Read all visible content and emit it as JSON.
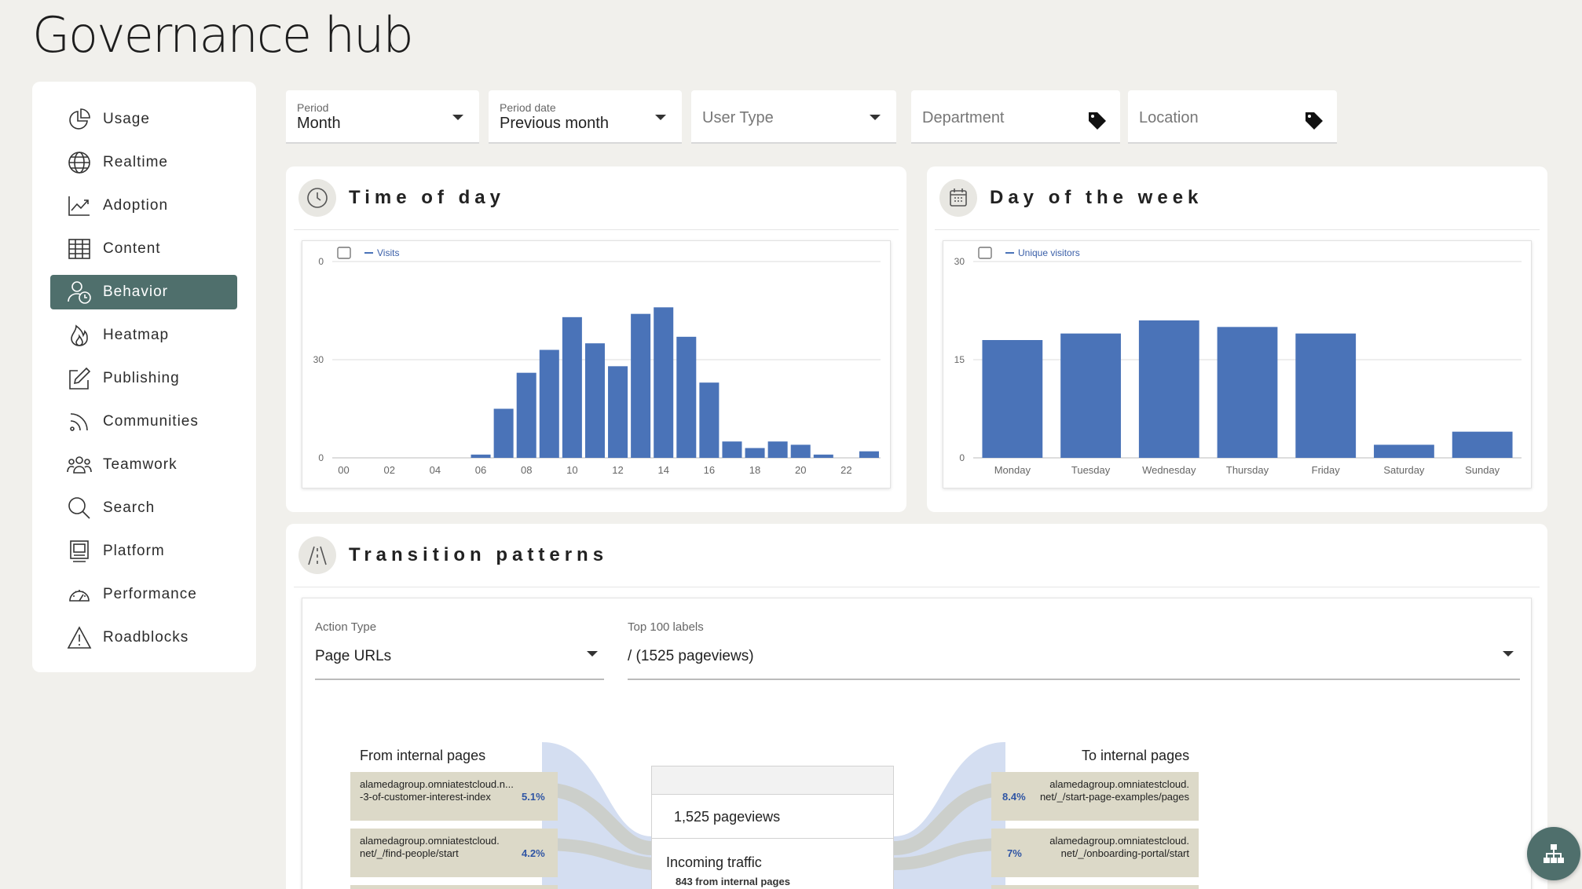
{
  "page": {
    "title": "Governance hub"
  },
  "sidebar": {
    "items": [
      {
        "label": "Usage",
        "icon": "pie-chart-icon"
      },
      {
        "label": "Realtime",
        "icon": "globe-icon"
      },
      {
        "label": "Adoption",
        "icon": "trend-chart-icon"
      },
      {
        "label": "Content",
        "icon": "table-icon"
      },
      {
        "label": "Behavior",
        "icon": "user-clock-icon",
        "active": true
      },
      {
        "label": "Heatmap",
        "icon": "flame-icon"
      },
      {
        "label": "Publishing",
        "icon": "edit-icon"
      },
      {
        "label": "Communities",
        "icon": "rss-icon"
      },
      {
        "label": "Teamwork",
        "icon": "team-icon"
      },
      {
        "label": "Search",
        "icon": "search-icon"
      },
      {
        "label": "Platform",
        "icon": "platform-icon"
      },
      {
        "label": "Performance",
        "icon": "gauge-icon"
      },
      {
        "label": "Roadblocks",
        "icon": "warning-icon"
      }
    ],
    "active_color": "#4f6f6c"
  },
  "filters": {
    "period": {
      "label": "Period",
      "value": "Month"
    },
    "period_date": {
      "label": "Period date",
      "value": "Previous month"
    },
    "user_type": {
      "placeholder": "User Type"
    },
    "department": {
      "placeholder": "Department"
    },
    "location": {
      "placeholder": "Location"
    }
  },
  "time_of_day": {
    "title": "Time of day",
    "chart_data": {
      "type": "bar",
      "legend": [
        "Visits"
      ],
      "series": [
        {
          "name": "Visits",
          "values": [
            0,
            0,
            0,
            0,
            0,
            0,
            1,
            15,
            26,
            33,
            43,
            35,
            28,
            44,
            46,
            37,
            23,
            5,
            3,
            5,
            4,
            1,
            0,
            2
          ]
        }
      ],
      "categories": [
        "00",
        "01",
        "02",
        "03",
        "04",
        "05",
        "06",
        "07",
        "08",
        "09",
        "10",
        "11",
        "12",
        "13",
        "14",
        "15",
        "16",
        "17",
        "18",
        "19",
        "20",
        "21",
        "22",
        "23"
      ],
      "tick_labels": [
        "00",
        "02",
        "04",
        "06",
        "08",
        "10",
        "12",
        "14",
        "16",
        "18",
        "20",
        "22"
      ],
      "y_ticks": [
        "0",
        "30",
        "0"
      ],
      "ylim": [
        0,
        60
      ],
      "color": "#4a73b8"
    }
  },
  "day_of_week": {
    "title": "Day of the week",
    "chart_data": {
      "type": "bar",
      "legend": [
        "Unique visitors"
      ],
      "categories": [
        "Monday",
        "Tuesday",
        "Wednesday",
        "Thursday",
        "Friday",
        "Saturday",
        "Sunday"
      ],
      "series": [
        {
          "name": "Unique visitors",
          "values": [
            18,
            19,
            21,
            20,
            19,
            2,
            4
          ]
        }
      ],
      "y_ticks": [
        "0",
        "15",
        "30"
      ],
      "ylim": [
        0,
        30
      ],
      "color": "#4a73b8"
    }
  },
  "transition": {
    "title": "Transition patterns",
    "action_type": {
      "label": "Action Type",
      "value": "Page URLs"
    },
    "top_labels": {
      "label": "Top 100 labels",
      "value": "/ (1525 pageviews)"
    },
    "from_label": "From internal pages",
    "to_label": "To internal pages",
    "from_rows": [
      {
        "line1": "alamedagroup.omniatestcloud.n...",
        "line2": "-3-of-customer-interest-index",
        "pct": "5.1%"
      },
      {
        "line1": "alamedagroup.omniatestcloud.",
        "line2": "net/_/find-people/start",
        "pct": "4.2%"
      }
    ],
    "to_rows": [
      {
        "line1": "alamedagroup.omniatestcloud.",
        "line2": "net/_/start-page-examples/pages",
        "pct": "8.4%"
      },
      {
        "line1": "alamedagroup.omniatestcloud.",
        "line2": "net/_/onboarding-portal/start",
        "pct": "7%"
      }
    ],
    "center": {
      "pageviews": "1,525 pageviews",
      "incoming": "Incoming traffic",
      "incoming_sub": "843 from internal pages"
    }
  }
}
